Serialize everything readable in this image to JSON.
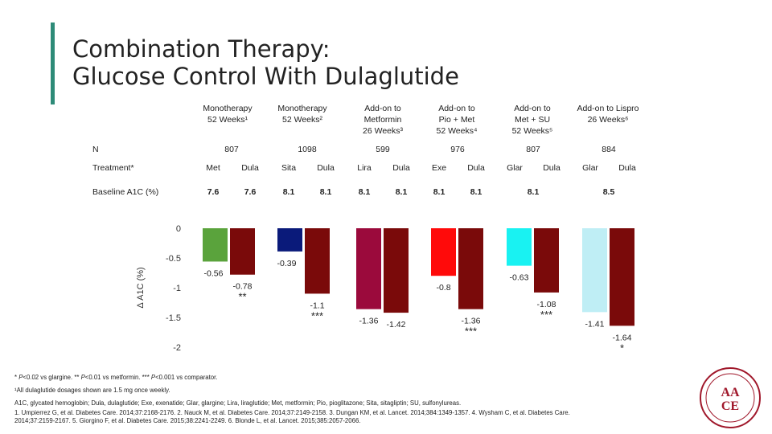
{
  "title": {
    "line1": "Combination Therapy:",
    "line2": "Glucose Control With Dulaglutide"
  },
  "columns": [
    {
      "head1": "Monotherapy",
      "head2": "52 Weeks¹",
      "head3": "",
      "n": "807",
      "treatments": [
        "Met",
        "Dula"
      ],
      "baseline": [
        "7.6",
        "7.6"
      ]
    },
    {
      "head1": "Monotherapy",
      "head2": "52 Weeks²",
      "head3": "",
      "n": "1098",
      "treatments": [
        "Sita",
        "Dula"
      ],
      "baseline": [
        "8.1",
        "8.1"
      ]
    },
    {
      "head1": "Add-on to",
      "head2": "Metformin",
      "head3": "26 Weeks³",
      "n": "599",
      "treatments": [
        "Lira",
        "Dula"
      ],
      "baseline": [
        "8.1",
        "8.1"
      ]
    },
    {
      "head1": "Add-on to",
      "head2": "Pio + Met",
      "head3": "52 Weeks⁴",
      "n": "976",
      "treatments": [
        "Exe",
        "Dula"
      ],
      "baseline": [
        "8.1",
        "8.1"
      ]
    },
    {
      "head1": "Add-on to",
      "head2": "Met + SU",
      "head3": "52 Weeks⁵",
      "n": "807",
      "treatments": [
        "Glar",
        "Dula"
      ],
      "baseline": [
        "8.1"
      ]
    },
    {
      "head1": "Add-on to Lispro",
      "head2": "26 Weeks⁶",
      "head3": "",
      "n": "884",
      "treatments": [
        "Glar",
        "Dula"
      ],
      "baseline": [
        "8.5"
      ]
    }
  ],
  "row_labels": {
    "n": "N",
    "treatment": "Treatment*",
    "baseline": "Baseline A1C (%)"
  },
  "chart_data": {
    "type": "bar",
    "ylabel": "Δ A1C (%)",
    "ylim": [
      -2,
      0
    ],
    "yticks": [
      "0",
      "-0.5",
      "-1",
      "-1.5",
      "-2"
    ],
    "grid": false,
    "series": [
      {
        "values": [
          -0.56,
          -0.78
        ],
        "labels": [
          "-0.56",
          "-0.78"
        ],
        "colors": [
          "#5aa33c",
          "#7a0a0a"
        ],
        "sig": [
          "",
          "**"
        ]
      },
      {
        "values": [
          -0.39,
          -1.1
        ],
        "labels": [
          "-0.39",
          "-1.1"
        ],
        "colors": [
          "#0a1a7a",
          "#7a0a0a"
        ],
        "sig": [
          "",
          "***"
        ]
      },
      {
        "values": [
          -1.36,
          -1.42
        ],
        "labels": [
          "-1.36",
          "-1.42"
        ],
        "colors": [
          "#9b0a3c",
          "#7a0a0a"
        ],
        "sig": [
          "",
          ""
        ]
      },
      {
        "values": [
          -0.8,
          -1.36
        ],
        "labels": [
          "-0.8",
          "-1.36"
        ],
        "colors": [
          "#ff0a0a",
          "#7a0a0a"
        ],
        "sig": [
          "",
          "***"
        ]
      },
      {
        "values": [
          -0.63,
          -1.08
        ],
        "labels": [
          "-0.63",
          "-1.08"
        ],
        "colors": [
          "#19f2f2",
          "#7a0a0a"
        ],
        "sig": [
          "",
          "***"
        ]
      },
      {
        "values": [
          -1.41,
          -1.64
        ],
        "labels": [
          "-1.41",
          "-1.64"
        ],
        "colors": [
          "#bfeef5",
          "#7a0a0a"
        ],
        "sig": [
          "",
          "*"
        ]
      }
    ]
  },
  "footnotes": {
    "line1_a": "* ",
    "line1_p1": "P",
    "line1_b": "<0.02 vs glargine. ** ",
    "line1_p2": "P",
    "line1_c": "<0.01 vs metformin. *** ",
    "line1_p3": "P",
    "line1_d": "<0.001 vs comparator.",
    "line2": "¹All dulaglutide dosages shown are 1.5 mg once weekly.",
    "line3": "A1C, glycated hemoglobin; Dula, dulaglutide; Exe, exenatide; Glar, glargine; Lira, liraglutide; Met, metformin; Pio, pioglitazone; Sita, sitagliptin; SU, sulfonylureas.",
    "line4": "1. Umpierrez G, et al. Diabetes Care. 2014;37:2168-2176. 2. Nauck M, et al. Diabetes Care. 2014;37:2149-2158. 3. Dungan KM, et al. Lancet. 2014;384:1349-1357. 4. Wysham C, et al. Diabetes Care.",
    "line5": "2014;37:2159-2167. 5. Giorgino F, et al. Diabetes Care. 2015;38:2241-2249. 6. Blonde L, et al. Lancet. 2015;385:2057-2066."
  },
  "logo": {
    "text_top": "AA",
    "text_bottom": "CE",
    "color": "#a0182b"
  }
}
